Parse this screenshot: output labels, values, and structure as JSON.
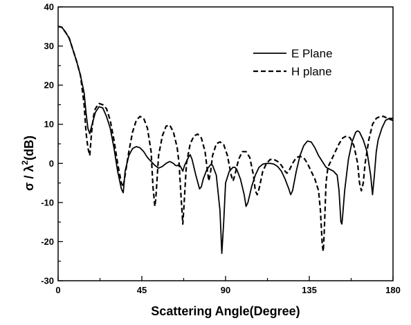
{
  "chart_data": {
    "type": "line",
    "title": "",
    "xlabel": "Scattering Angle(Degree)",
    "ylabel_main": "σ / λ",
    "ylabel_sup": "2",
    "ylabel_unit": "(dB)",
    "xlim": [
      0,
      180
    ],
    "ylim": [
      -30,
      40
    ],
    "xticks": [
      0,
      45,
      90,
      135,
      180
    ],
    "yticks": [
      -30,
      -20,
      -10,
      0,
      10,
      20,
      30,
      40
    ],
    "grid": false,
    "legend_position": "top-right",
    "series": [
      {
        "name": "E Plane",
        "style": "solid",
        "color": "#000000",
        "points": [
          [
            0,
            35
          ],
          [
            2,
            34.8
          ],
          [
            4,
            33.5
          ],
          [
            6,
            32
          ],
          [
            8,
            29
          ],
          [
            10,
            26
          ],
          [
            12,
            22.5
          ],
          [
            14,
            18
          ],
          [
            15,
            13
          ],
          [
            16,
            9
          ],
          [
            17,
            7.6
          ],
          [
            18,
            9.5
          ],
          [
            20,
            13
          ],
          [
            22,
            14.5
          ],
          [
            24,
            14.2
          ],
          [
            26,
            12
          ],
          [
            28,
            9
          ],
          [
            30,
            4
          ],
          [
            32,
            -2
          ],
          [
            34,
            -6.5
          ],
          [
            35,
            -7.5
          ],
          [
            36,
            -2
          ],
          [
            38,
            2
          ],
          [
            40,
            3.8
          ],
          [
            42,
            4.3
          ],
          [
            44,
            4
          ],
          [
            46,
            3
          ],
          [
            48,
            1.5
          ],
          [
            50,
            0.5
          ],
          [
            52,
            -0.5
          ],
          [
            54,
            -1.2
          ],
          [
            56,
            -0.8
          ],
          [
            58,
            0
          ],
          [
            60,
            0.5
          ],
          [
            62,
            0
          ],
          [
            63,
            -0.5
          ],
          [
            64,
            -0.6
          ],
          [
            65,
            -0.3
          ],
          [
            66,
            -1
          ],
          [
            67,
            -2
          ],
          [
            68,
            -0.5
          ],
          [
            70,
            1.5
          ],
          [
            71,
            2.2
          ],
          [
            72,
            1
          ],
          [
            74,
            -3
          ],
          [
            76,
            -6.5
          ],
          [
            77,
            -6
          ],
          [
            78,
            -4
          ],
          [
            80,
            -1.5
          ],
          [
            82,
            -0.3
          ],
          [
            83,
            -0.5
          ],
          [
            85,
            -3
          ],
          [
            87,
            -12
          ],
          [
            88,
            -23
          ],
          [
            89,
            -15
          ],
          [
            90,
            -5
          ],
          [
            92,
            -2
          ],
          [
            94,
            -1
          ],
          [
            95,
            -1
          ],
          [
            96,
            -1.5
          ],
          [
            98,
            -4
          ],
          [
            100,
            -8
          ],
          [
            101,
            -11
          ],
          [
            102,
            -10
          ],
          [
            104,
            -6
          ],
          [
            106,
            -3
          ],
          [
            108,
            -1
          ],
          [
            110,
            -0.2
          ],
          [
            112,
            0
          ],
          [
            114,
            0
          ],
          [
            116,
            -0.2
          ],
          [
            118,
            -0.8
          ],
          [
            120,
            -2
          ],
          [
            122,
            -4
          ],
          [
            124,
            -6.5
          ],
          [
            125,
            -8
          ],
          [
            126,
            -7
          ],
          [
            128,
            -2
          ],
          [
            130,
            2
          ],
          [
            132,
            4.5
          ],
          [
            134,
            5.7
          ],
          [
            136,
            5.5
          ],
          [
            138,
            4
          ],
          [
            140,
            2
          ],
          [
            142,
            0.5
          ],
          [
            144,
            -1
          ],
          [
            146,
            -1.5
          ],
          [
            148,
            -2
          ],
          [
            150,
            -3
          ],
          [
            151,
            -7
          ],
          [
            152,
            -15
          ],
          [
            152.5,
            -15.5
          ],
          [
            153,
            -13
          ],
          [
            154,
            -7
          ],
          [
            156,
            1
          ],
          [
            158,
            5.5
          ],
          [
            160,
            8
          ],
          [
            161,
            8.3
          ],
          [
            162,
            8
          ],
          [
            164,
            6
          ],
          [
            166,
            3
          ],
          [
            168,
            -3
          ],
          [
            169,
            -8
          ],
          [
            170,
            -3
          ],
          [
            171,
            3
          ],
          [
            172,
            6
          ],
          [
            174,
            9
          ],
          [
            176,
            11
          ],
          [
            178,
            11.5
          ],
          [
            180,
            11.5
          ]
        ]
      },
      {
        "name": "H plane",
        "style": "dashed",
        "color": "#000000",
        "points": [
          [
            0,
            35
          ],
          [
            2,
            34.8
          ],
          [
            4,
            33.5
          ],
          [
            6,
            32
          ],
          [
            8,
            29
          ],
          [
            10,
            26
          ],
          [
            12,
            22.5
          ],
          [
            14,
            15
          ],
          [
            15,
            8
          ],
          [
            16,
            4
          ],
          [
            17,
            2
          ],
          [
            18,
            8
          ],
          [
            19,
            12
          ],
          [
            20,
            14
          ],
          [
            22,
            15.3
          ],
          [
            24,
            15
          ],
          [
            26,
            14
          ],
          [
            28,
            11
          ],
          [
            30,
            6
          ],
          [
            32,
            0
          ],
          [
            34,
            -5
          ],
          [
            35,
            -6
          ],
          [
            36,
            -3
          ],
          [
            38,
            3
          ],
          [
            40,
            8
          ],
          [
            42,
            11
          ],
          [
            44,
            12
          ],
          [
            46,
            11.5
          ],
          [
            48,
            9
          ],
          [
            50,
            3
          ],
          [
            51,
            -6
          ],
          [
            52,
            -11
          ],
          [
            52.5,
            -9
          ],
          [
            54,
            2
          ],
          [
            56,
            7
          ],
          [
            58,
            9.5
          ],
          [
            60,
            9.8
          ],
          [
            62,
            8
          ],
          [
            64,
            4
          ],
          [
            65,
            0
          ],
          [
            66,
            -8
          ],
          [
            67,
            -15.5
          ],
          [
            67.5,
            -12
          ],
          [
            69,
            0
          ],
          [
            71,
            5
          ],
          [
            73,
            7
          ],
          [
            75,
            7.5
          ],
          [
            77,
            6.5
          ],
          [
            79,
            3
          ],
          [
            80,
            -1
          ],
          [
            81,
            -4.5
          ],
          [
            82,
            -2
          ],
          [
            83,
            2
          ],
          [
            85,
            5
          ],
          [
            87,
            5.5
          ],
          [
            89,
            4.8
          ],
          [
            91,
            2
          ],
          [
            93,
            -3
          ],
          [
            94,
            -4.5
          ],
          [
            95,
            -3
          ],
          [
            97,
            1
          ],
          [
            99,
            3
          ],
          [
            101,
            3
          ],
          [
            103,
            1.5
          ],
          [
            105,
            -3
          ],
          [
            106,
            -7
          ],
          [
            107,
            -8
          ],
          [
            108,
            -6.5
          ],
          [
            110,
            -2
          ],
          [
            112,
            0
          ],
          [
            114,
            1
          ],
          [
            116,
            1
          ],
          [
            118,
            0.5
          ],
          [
            120,
            -0.5
          ],
          [
            122,
            -2
          ],
          [
            123,
            -2.5
          ],
          [
            124,
            -2
          ],
          [
            126,
            0
          ],
          [
            128,
            1.5
          ],
          [
            130,
            1.8
          ],
          [
            132,
            1.5
          ],
          [
            134,
            0
          ],
          [
            136,
            -2
          ],
          [
            138,
            -4
          ],
          [
            140,
            -7
          ],
          [
            141,
            -12
          ],
          [
            142,
            -21
          ],
          [
            142.5,
            -22.5
          ],
          [
            143,
            -18
          ],
          [
            144,
            -5
          ],
          [
            145,
            -1
          ],
          [
            147,
            1
          ],
          [
            149,
            3
          ],
          [
            151,
            5
          ],
          [
            153,
            6.5
          ],
          [
            155,
            7
          ],
          [
            157,
            6.5
          ],
          [
            159,
            4.5
          ],
          [
            161,
            0
          ],
          [
            162,
            -5
          ],
          [
            163,
            -7
          ],
          [
            164,
            -5
          ],
          [
            165,
            0
          ],
          [
            167,
            6
          ],
          [
            169,
            10
          ],
          [
            171,
            11.5
          ],
          [
            173,
            12
          ],
          [
            175,
            12
          ],
          [
            177,
            11.5
          ],
          [
            180,
            11
          ]
        ]
      }
    ]
  }
}
